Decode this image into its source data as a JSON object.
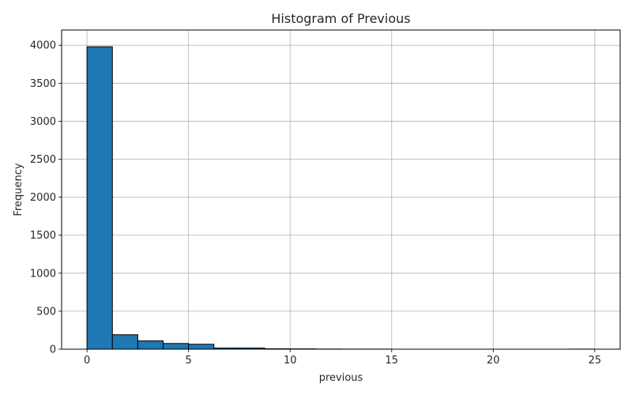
{
  "chart_data": {
    "type": "bar",
    "title": "Histogram of Previous",
    "xlabel": "previous",
    "ylabel": "Frequency",
    "xlim": [
      -1.25,
      26.25
    ],
    "ylim": [
      0,
      4200
    ],
    "grid": true,
    "bar_color": "#1f77b4",
    "edge_color": "#000000",
    "grid_color": "#b0b0b0",
    "xticks": [
      0,
      5,
      10,
      15,
      20,
      25
    ],
    "xtick_labels": [
      "0",
      "5",
      "10",
      "15",
      "20",
      "25"
    ],
    "yticks": [
      0,
      500,
      1000,
      1500,
      2000,
      2500,
      3000,
      3500,
      4000
    ],
    "ytick_labels": [
      "0",
      "500",
      "1000",
      "1500",
      "2000",
      "2500",
      "3000",
      "3500",
      "4000"
    ],
    "bins": [
      {
        "x0": 0.0,
        "x1": 1.25,
        "count": 3980
      },
      {
        "x0": 1.25,
        "x1": 2.5,
        "count": 190
      },
      {
        "x0": 2.5,
        "x1": 3.75,
        "count": 110
      },
      {
        "x0": 3.75,
        "x1": 5.0,
        "count": 75
      },
      {
        "x0": 5.0,
        "x1": 6.25,
        "count": 65
      },
      {
        "x0": 6.25,
        "x1": 7.5,
        "count": 15
      },
      {
        "x0": 7.5,
        "x1": 8.75,
        "count": 15
      },
      {
        "x0": 8.75,
        "x1": 10.0,
        "count": 5
      },
      {
        "x0": 10.0,
        "x1": 11.25,
        "count": 4
      },
      {
        "x0": 11.25,
        "x1": 12.5,
        "count": 2
      },
      {
        "x0": 12.5,
        "x1": 13.75,
        "count": 1
      },
      {
        "x0": 13.75,
        "x1": 15.0,
        "count": 1
      },
      {
        "x0": 15.0,
        "x1": 16.25,
        "count": 0
      },
      {
        "x0": 16.25,
        "x1": 17.5,
        "count": 0
      },
      {
        "x0": 17.5,
        "x1": 18.75,
        "count": 0
      },
      {
        "x0": 18.75,
        "x1": 20.0,
        "count": 0
      },
      {
        "x0": 20.0,
        "x1": 21.25,
        "count": 0
      },
      {
        "x0": 21.25,
        "x1": 22.5,
        "count": 0
      },
      {
        "x0": 22.5,
        "x1": 23.75,
        "count": 0
      },
      {
        "x0": 23.75,
        "x1": 25.0,
        "count": 1
      }
    ]
  }
}
